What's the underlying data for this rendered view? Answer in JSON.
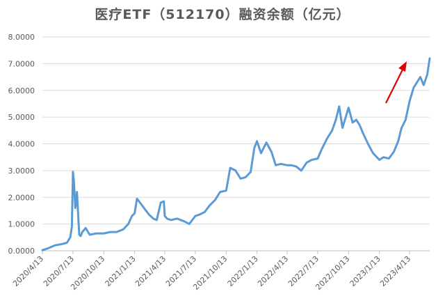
{
  "chart_data": {
    "type": "line",
    "title": "医疗ETF（512170）融资余额（亿元）",
    "xlabel": "",
    "ylabel": "",
    "ylim": [
      0,
      8
    ],
    "y_ticks": [
      "0.0000",
      "1.0000",
      "2.0000",
      "3.0000",
      "4.0000",
      "5.0000",
      "6.0000",
      "7.0000",
      "8.0000"
    ],
    "x_ticks": [
      "2020/4/13",
      "2020/7/13",
      "2020/10/13",
      "2021/1/13",
      "2021/4/13",
      "2021/7/13",
      "2021/10/13",
      "2022/1/13",
      "2022/4/13",
      "2022/7/13",
      "2022/10/13",
      "2023/1/13",
      "2023/4/13"
    ],
    "grid": "horizontal",
    "series_color": "#5B9BD5",
    "annotation": "red-arrow-up",
    "x": [
      "2020/4/13",
      "2020/5/1",
      "2020/5/20",
      "2020/6/10",
      "2020/6/25",
      "2020/7/5",
      "2020/7/10",
      "2020/7/13",
      "2020/7/16",
      "2020/7/20",
      "2020/7/25",
      "2020/7/28",
      "2020/8/1",
      "2020/8/5",
      "2020/8/10",
      "2020/8/20",
      "2020/9/1",
      "2020/9/20",
      "2020/10/13",
      "2020/11/1",
      "2020/11/20",
      "2020/12/10",
      "2020/12/25",
      "2021/1/5",
      "2021/1/13",
      "2021/1/20",
      "2021/2/1",
      "2021/2/10",
      "2021/2/25",
      "2021/3/10",
      "2021/3/20",
      "2021/4/1",
      "2021/4/10",
      "2021/4/13",
      "2021/4/20",
      "2021/5/1",
      "2021/5/20",
      "2021/6/10",
      "2021/6/25",
      "2021/7/13",
      "2021/7/25",
      "2021/8/10",
      "2021/8/25",
      "2021/9/10",
      "2021/9/25",
      "2021/10/13",
      "2021/10/25",
      "2021/11/10",
      "2021/11/25",
      "2021/12/10",
      "2021/12/25",
      "2022/1/5",
      "2022/1/13",
      "2022/1/25",
      "2022/2/10",
      "2022/2/25",
      "2022/3/10",
      "2022/3/25",
      "2022/4/13",
      "2022/4/25",
      "2022/5/10",
      "2022/5/25",
      "2022/6/10",
      "2022/6/25",
      "2022/7/13",
      "2022/7/25",
      "2022/8/10",
      "2022/8/25",
      "2022/9/5",
      "2022/9/15",
      "2022/9/25",
      "2022/10/13",
      "2022/10/25",
      "2022/11/5",
      "2022/11/15",
      "2022/11/25",
      "2022/12/10",
      "2022/12/25",
      "2023/1/13",
      "2023/1/25",
      "2023/2/10",
      "2023/2/25",
      "2023/3/10",
      "2023/3/20",
      "2023/4/1",
      "2023/4/13",
      "2023/4/25",
      "2023/5/5",
      "2023/5/15",
      "2023/5/25",
      "2023/6/5",
      "2023/6/12"
    ],
    "values": [
      0.02,
      0.1,
      0.2,
      0.25,
      0.3,
      0.5,
      0.9,
      2.95,
      2.6,
      1.6,
      2.2,
      1.5,
      0.6,
      0.55,
      0.7,
      0.85,
      0.6,
      0.65,
      0.65,
      0.7,
      0.7,
      0.8,
      1.0,
      1.3,
      1.4,
      1.95,
      1.75,
      1.6,
      1.35,
      1.2,
      1.15,
      1.8,
      1.85,
      1.3,
      1.2,
      1.15,
      1.2,
      1.1,
      1.0,
      1.3,
      1.35,
      1.45,
      1.7,
      1.9,
      2.2,
      2.25,
      3.1,
      3.0,
      2.7,
      2.75,
      2.95,
      3.85,
      4.1,
      3.65,
      4.05,
      3.7,
      3.2,
      3.25,
      3.2,
      3.2,
      3.15,
      3.0,
      3.3,
      3.4,
      3.45,
      3.8,
      4.2,
      4.5,
      4.9,
      5.4,
      4.6,
      5.35,
      4.8,
      4.9,
      4.7,
      4.4,
      4.0,
      3.65,
      3.4,
      3.5,
      3.45,
      3.7,
      4.1,
      4.6,
      4.9,
      5.6,
      6.1,
      6.3,
      6.5,
      6.2,
      6.6,
      7.2
    ]
  }
}
